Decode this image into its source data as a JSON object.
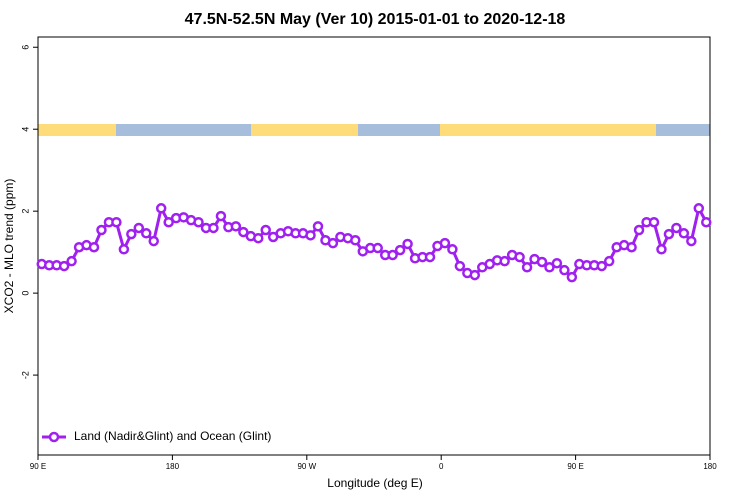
{
  "chart_data": {
    "type": "line",
    "title": "47.5N-52.5N May (Ver 10)   2015-01-01 to 2020-12-18",
    "x_label": "Longitude (deg E)",
    "y_label": "XCO2 - MLO trend (ppm)",
    "x": [
      92.5,
      97.5,
      102.5,
      107.5,
      112.5,
      117.5,
      122.5,
      127.5,
      132.5,
      137.5,
      142.5,
      147.5,
      152.5,
      157.5,
      162.5,
      167.5,
      172.5,
      177.5,
      182.5,
      187.5,
      192.5,
      197.5,
      202.5,
      207.5,
      212.5,
      217.5,
      222.5,
      227.5,
      232.5,
      237.5,
      242.5,
      247.5,
      252.5,
      257.5,
      262.5,
      267.5,
      272.5,
      277.5,
      282.5,
      287.5,
      292.5,
      297.5,
      302.5,
      307.5,
      312.5,
      317.5,
      322.5,
      327.5,
      332.5,
      337.5,
      342.5,
      347.5,
      352.5,
      357.5,
      362.5,
      367.5,
      372.5,
      377.5,
      382.5,
      387.5,
      392.5,
      397.5,
      402.5,
      407.5,
      412.5,
      417.5,
      422.5,
      427.5,
      432.5,
      437.5,
      442.5,
      447.5,
      452.5,
      457.5,
      462.5,
      467.5,
      472.5,
      477.5,
      482.5,
      487.5,
      492.5,
      497.5,
      502.5,
      507.5,
      512.5,
      517.5,
      522.5,
      527.5,
      532.5,
      537.5
    ],
    "series": [
      {
        "name": "Land (Nadir&Glint) and Ocean (Glint)",
        "color": "#a020f0",
        "values": [
          0.71,
          0.68,
          0.68,
          0.66,
          0.78,
          1.12,
          1.17,
          1.12,
          1.54,
          1.73,
          1.73,
          1.07,
          1.44,
          1.59,
          1.46,
          1.27,
          2.07,
          1.73,
          1.83,
          1.85,
          1.78,
          1.73,
          1.59,
          1.59,
          1.88,
          1.61,
          1.63,
          1.49,
          1.39,
          1.34,
          1.54,
          1.37,
          1.46,
          1.51,
          1.46,
          1.46,
          1.41,
          1.63,
          1.29,
          1.22,
          1.37,
          1.34,
          1.29,
          1.02,
          1.1,
          1.1,
          0.93,
          0.93,
          1.05,
          1.2,
          0.85,
          0.88,
          0.88,
          1.15,
          1.22,
          1.07,
          0.66,
          0.49,
          0.44,
          0.63,
          0.71,
          0.8,
          0.78,
          0.93,
          0.88,
          0.63,
          0.83,
          0.76,
          0.63,
          0.73,
          0.56,
          0.39,
          0.71,
          0.68,
          0.68,
          0.66,
          0.78,
          1.12,
          1.17,
          1.12,
          1.54,
          1.73,
          1.73,
          1.07,
          1.44,
          1.59,
          1.46,
          1.27,
          2.07,
          1.73
        ]
      }
    ],
    "xlim": [
      90,
      540
    ],
    "xticks": [
      {
        "value": 90,
        "label": "90 E"
      },
      {
        "value": 180,
        "label": "180"
      },
      {
        "value": 270,
        "label": "90 W"
      },
      {
        "value": 360,
        "label": "0"
      },
      {
        "value": 450,
        "label": "90 E"
      },
      {
        "value": 540,
        "label": "180"
      }
    ],
    "ylim": [
      -3.95,
      6.25
    ],
    "yticks": [
      -2,
      0,
      2,
      4,
      6
    ],
    "legend": "bottom-left"
  }
}
